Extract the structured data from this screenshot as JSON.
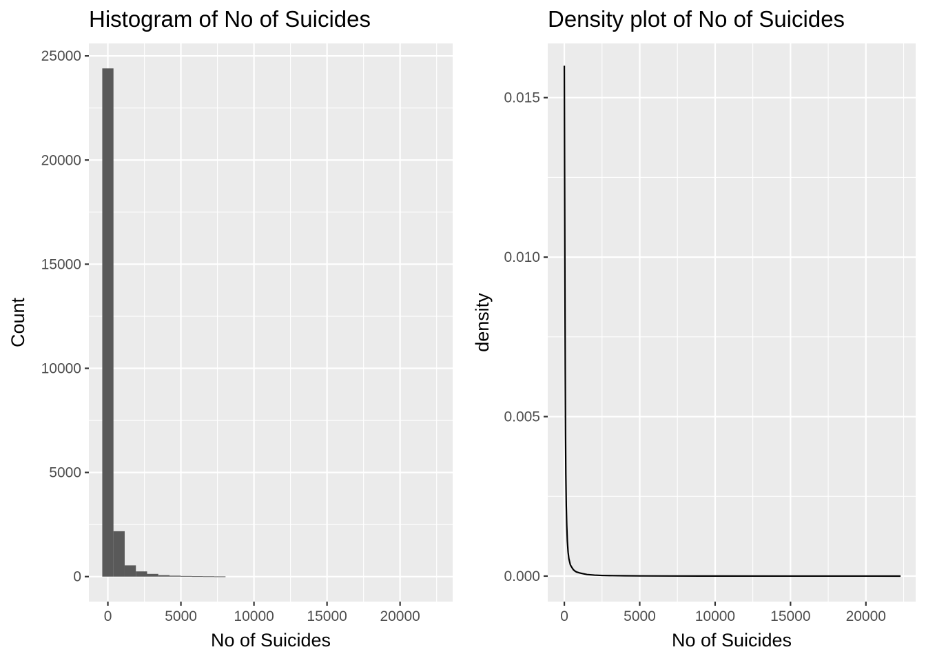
{
  "chart_data": [
    {
      "type": "bar",
      "title": "Histogram of No of Suicides",
      "xlabel": "No of Suicides",
      "ylabel": "Count",
      "xlim": [
        -1300,
        23600
      ],
      "ylim": [
        -1200,
        25600
      ],
      "x_ticks": [
        0,
        5000,
        10000,
        15000,
        20000
      ],
      "x_tick_labels": [
        "0",
        "5000",
        "10000",
        "15000",
        "20000"
      ],
      "y_ticks": [
        0,
        5000,
        10000,
        15000,
        20000,
        25000
      ],
      "y_tick_labels": [
        "0",
        "5000",
        "10000",
        "15000",
        "20000",
        "25000"
      ],
      "bin_width": 767,
      "bins": [
        {
          "x": 0,
          "count": 24400
        },
        {
          "x": 767,
          "count": 2180
        },
        {
          "x": 1534,
          "count": 540
        },
        {
          "x": 2301,
          "count": 250
        },
        {
          "x": 3068,
          "count": 130
        },
        {
          "x": 3835,
          "count": 70
        },
        {
          "x": 4602,
          "count": 45
        },
        {
          "x": 5369,
          "count": 30
        },
        {
          "x": 6136,
          "count": 20
        },
        {
          "x": 6903,
          "count": 15
        },
        {
          "x": 7670,
          "count": 10
        }
      ],
      "grid": true,
      "colors": {
        "bar": "#595959",
        "panel": "#ebebeb",
        "grid": "#ffffff"
      }
    },
    {
      "type": "line",
      "title": "Density plot of No of Suicides",
      "xlabel": "No of Suicides",
      "ylabel": "density",
      "xlim": [
        -1100,
        23300
      ],
      "ylim": [
        -0.0008,
        0.0167
      ],
      "x_ticks": [
        0,
        5000,
        10000,
        15000,
        20000
      ],
      "x_tick_labels": [
        "0",
        "5000",
        "10000",
        "15000",
        "20000"
      ],
      "y_ticks": [
        0,
        0.005,
        0.01,
        0.015
      ],
      "y_tick_labels": [
        "0.000",
        "0.005",
        "0.010",
        "0.015"
      ],
      "x": [
        0,
        20,
        40,
        60,
        80,
        100,
        130,
        160,
        200,
        250,
        300,
        350,
        400,
        500,
        600,
        700,
        800,
        1000,
        1200,
        1500,
        2000,
        2500,
        3000,
        4000,
        5000,
        7000,
        10000,
        15000,
        20000,
        22300
      ],
      "y": [
        0.016,
        0.0125,
        0.0092,
        0.0065,
        0.0045,
        0.0032,
        0.0022,
        0.0016,
        0.0011,
        0.00075,
        0.00055,
        0.00045,
        0.00035,
        0.00027,
        0.0002,
        0.00016,
        0.00013,
        0.0001,
        8e-05,
        5e-05,
        3e-05,
        2e-05,
        1.5e-05,
        1e-05,
        6e-06,
        4e-06,
        2e-06,
        1e-06,
        5e-07,
        0
      ],
      "grid": true,
      "colors": {
        "line": "#000000",
        "panel": "#ebebeb",
        "grid": "#ffffff"
      }
    }
  ]
}
